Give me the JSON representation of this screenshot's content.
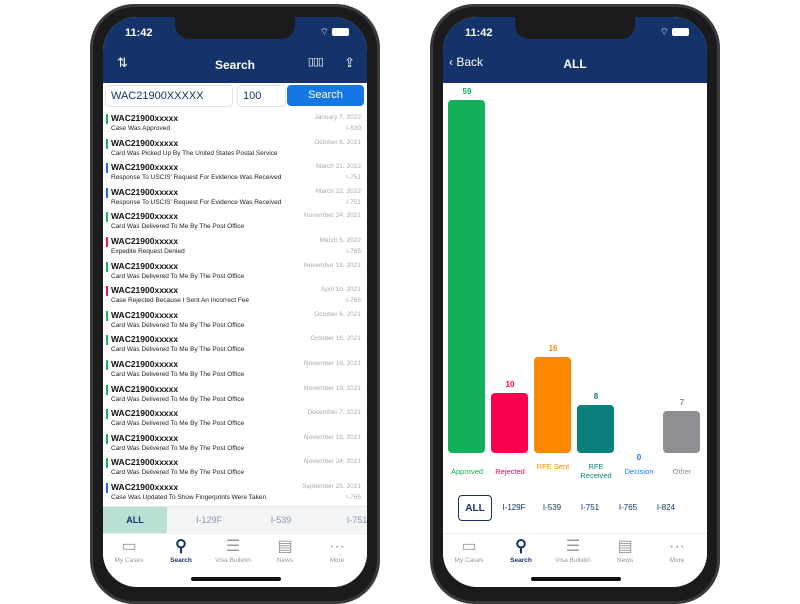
{
  "status": {
    "time": "11:42"
  },
  "left": {
    "title": "Search",
    "icons": {
      "sort": "sort-icon",
      "chart": "bar-chart-icon",
      "share": "share-icon"
    },
    "search": {
      "receipt_value": "WAC21900XXXXX",
      "count_value": "100",
      "button": "Search"
    },
    "rows": [
      {
        "id": "WAC21900xxxxx",
        "status": "Case Was Approved",
        "date": "January 7, 2022",
        "form": "I-539",
        "color": "#1fb35a"
      },
      {
        "id": "WAC21900xxxxx",
        "status": "Card Was Picked Up By The United States Postal Service",
        "date": "October 8, 2021",
        "form": "",
        "color": "#1fb35a"
      },
      {
        "id": "WAC21900xxxxx",
        "status": "Response To USCIS' Request For Evidence Was Received",
        "date": "March 21, 2022",
        "form": "I-751",
        "color": "#1a6fe8"
      },
      {
        "id": "WAC21900xxxxx",
        "status": "Response To USCIS' Request For Evidence Was Received",
        "date": "March 22, 2022",
        "form": "I-751",
        "color": "#1a6fe8"
      },
      {
        "id": "WAC21900xxxxx",
        "status": "Card Was Delivered To Me By The Post Office",
        "date": "November 24, 2021",
        "form": "",
        "color": "#1fb35a"
      },
      {
        "id": "WAC21900xxxxx",
        "status": "Expedite Request Denied",
        "date": "March 5, 2022",
        "form": "I-765",
        "color": "#e8174a"
      },
      {
        "id": "WAC21900xxxxx",
        "status": "Card Was Delivered To Me By The Post Office",
        "date": "November 19, 2021",
        "form": "",
        "color": "#1fb35a"
      },
      {
        "id": "WAC21900xxxxx",
        "status": "Case Rejected Because I Sent An Incorrect Fee",
        "date": "April 10, 2021",
        "form": "I-765",
        "color": "#e8174a"
      },
      {
        "id": "WAC21900xxxxx",
        "status": "Card Was Delivered To Me By The Post Office",
        "date": "October 6, 2021",
        "form": "",
        "color": "#1fb35a"
      },
      {
        "id": "WAC21900xxxxx",
        "status": "Card Was Delivered To Me By The Post Office",
        "date": "October 16, 2021",
        "form": "",
        "color": "#1fb35a"
      },
      {
        "id": "WAC21900xxxxx",
        "status": "Card Was Delivered To Me By The Post Office",
        "date": "November 18, 2021",
        "form": "",
        "color": "#1fb35a"
      },
      {
        "id": "WAC21900xxxxx",
        "status": "Card Was Delivered To Me By The Post Office",
        "date": "November 19, 2021",
        "form": "",
        "color": "#1fb35a"
      },
      {
        "id": "WAC21900xxxxx",
        "status": "Card Was Delivered To Me By The Post Office",
        "date": "December 7, 2021",
        "form": "",
        "color": "#1fb35a"
      },
      {
        "id": "WAC21900xxxxx",
        "status": "Card Was Delivered To Me By The Post Office",
        "date": "November 18, 2021",
        "form": "",
        "color": "#1fb35a"
      },
      {
        "id": "WAC21900xxxxx",
        "status": "Card Was Delivered To Me By The Post Office",
        "date": "November 24, 2021",
        "form": "",
        "color": "#1fb35a"
      },
      {
        "id": "WAC21900xxxxx",
        "status": "Case Was Updated To Show Fingerprints Were Taken",
        "date": "September 25, 2021",
        "form": "I-765",
        "color": "#1a6fe8"
      }
    ],
    "filters": [
      "ALL",
      "I-129F",
      "I-539",
      "I-751"
    ],
    "selected_filter": "ALL"
  },
  "right": {
    "back": "Back",
    "title": "ALL",
    "filters": [
      "ALL",
      "I-129F",
      "I-539",
      "I-751",
      "I-765",
      "I-824"
    ],
    "selected_filter": "ALL"
  },
  "chart_data": {
    "type": "bar",
    "categories": [
      "Approved",
      "Rejected",
      "RFE Sent",
      "RFE Received",
      "Decision",
      "Other"
    ],
    "values": [
      59,
      10,
      16,
      8,
      0,
      7
    ],
    "colors": [
      "#12b05a",
      "#fa0150",
      "#fe8800",
      "#0a7f7c",
      "#1a7cf0",
      "#8e8e93"
    ]
  },
  "tabbar": [
    {
      "label": "My Cases",
      "icon": "cases-icon"
    },
    {
      "label": "Search",
      "icon": "search-icon"
    },
    {
      "label": "Visa Bulletin",
      "icon": "list-icon"
    },
    {
      "label": "News",
      "icon": "news-icon"
    },
    {
      "label": "More",
      "icon": "more-icon"
    }
  ]
}
